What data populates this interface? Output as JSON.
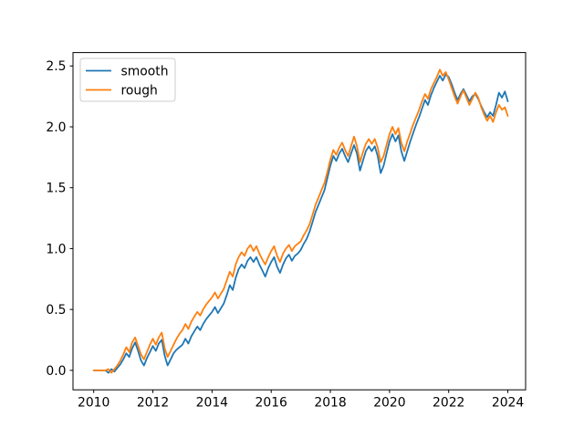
{
  "window": {
    "background": "#ffffff"
  },
  "chart_data": {
    "type": "line",
    "title": "",
    "xlabel": "",
    "ylabel": "",
    "grid": false,
    "xlim": [
      2009.3,
      2024.6
    ],
    "ylim": [
      -0.16,
      2.61
    ],
    "x_tick_values": [
      2010,
      2012,
      2014,
      2016,
      2018,
      2020,
      2022,
      2024
    ],
    "x_tick_labels": [
      "2010",
      "2012",
      "2014",
      "2016",
      "2018",
      "2020",
      "2022",
      "2024"
    ],
    "y_tick_values": [
      0.0,
      0.5,
      1.0,
      1.5,
      2.0,
      2.5
    ],
    "y_tick_labels": [
      "0.0",
      "0.5",
      "1.0",
      "1.5",
      "2.0",
      "2.5"
    ],
    "x_start": 2010.0,
    "x_step": 0.1,
    "axis_color": "#000000",
    "plot_background": "#ffffff",
    "legend": {
      "position": "upper-left",
      "frame": true,
      "border_color": "#cccccc",
      "background": "#ffffff",
      "entries": [
        "smooth",
        "rough"
      ]
    },
    "series": [
      {
        "name": "smooth",
        "color": "#1f77b4",
        "values": [
          0.0,
          0.0,
          0.0,
          0.0,
          0.0,
          -0.02,
          0.01,
          -0.01,
          0.02,
          0.05,
          0.09,
          0.14,
          0.11,
          0.18,
          0.23,
          0.16,
          0.08,
          0.04,
          0.1,
          0.15,
          0.2,
          0.16,
          0.22,
          0.25,
          0.12,
          0.04,
          0.09,
          0.14,
          0.17,
          0.19,
          0.21,
          0.26,
          0.22,
          0.28,
          0.32,
          0.36,
          0.33,
          0.38,
          0.42,
          0.45,
          0.48,
          0.52,
          0.47,
          0.51,
          0.55,
          0.62,
          0.7,
          0.66,
          0.76,
          0.83,
          0.87,
          0.84,
          0.9,
          0.93,
          0.89,
          0.93,
          0.87,
          0.82,
          0.77,
          0.84,
          0.89,
          0.93,
          0.85,
          0.8,
          0.87,
          0.92,
          0.95,
          0.9,
          0.94,
          0.96,
          0.99,
          1.04,
          1.08,
          1.14,
          1.22,
          1.3,
          1.36,
          1.42,
          1.48,
          1.58,
          1.68,
          1.76,
          1.72,
          1.78,
          1.82,
          1.76,
          1.71,
          1.78,
          1.85,
          1.78,
          1.64,
          1.72,
          1.8,
          1.84,
          1.8,
          1.84,
          1.76,
          1.62,
          1.68,
          1.78,
          1.88,
          1.94,
          1.88,
          1.93,
          1.8,
          1.72,
          1.8,
          1.88,
          1.95,
          2.02,
          2.08,
          2.15,
          2.22,
          2.18,
          2.26,
          2.32,
          2.37,
          2.42,
          2.38,
          2.43,
          2.41,
          2.35,
          2.28,
          2.22,
          2.27,
          2.31,
          2.26,
          2.21,
          2.25,
          2.27,
          2.23,
          2.17,
          2.12,
          2.08,
          2.12,
          2.09,
          2.18,
          2.28,
          2.24,
          2.29,
          2.21
        ]
      },
      {
        "name": "rough",
        "color": "#ff7f0e",
        "values": [
          0.0,
          0.0,
          0.0,
          0.0,
          0.0,
          0.01,
          -0.02,
          0.01,
          0.04,
          0.08,
          0.13,
          0.19,
          0.15,
          0.23,
          0.27,
          0.2,
          0.13,
          0.09,
          0.15,
          0.21,
          0.26,
          0.21,
          0.27,
          0.31,
          0.18,
          0.11,
          0.16,
          0.21,
          0.26,
          0.3,
          0.33,
          0.38,
          0.34,
          0.4,
          0.44,
          0.48,
          0.45,
          0.5,
          0.54,
          0.57,
          0.6,
          0.64,
          0.59,
          0.63,
          0.67,
          0.74,
          0.81,
          0.77,
          0.87,
          0.93,
          0.97,
          0.94,
          1.0,
          1.03,
          0.98,
          1.02,
          0.96,
          0.91,
          0.87,
          0.93,
          0.98,
          1.02,
          0.94,
          0.89,
          0.96,
          1.0,
          1.03,
          0.98,
          1.02,
          1.04,
          1.06,
          1.11,
          1.15,
          1.2,
          1.28,
          1.36,
          1.42,
          1.48,
          1.54,
          1.63,
          1.73,
          1.81,
          1.77,
          1.83,
          1.87,
          1.81,
          1.76,
          1.84,
          1.92,
          1.84,
          1.71,
          1.79,
          1.86,
          1.9,
          1.86,
          1.9,
          1.83,
          1.71,
          1.76,
          1.85,
          1.94,
          2.0,
          1.94,
          1.99,
          1.87,
          1.8,
          1.88,
          1.95,
          2.02,
          2.08,
          2.14,
          2.21,
          2.27,
          2.23,
          2.31,
          2.36,
          2.41,
          2.47,
          2.42,
          2.45,
          2.39,
          2.32,
          2.25,
          2.19,
          2.25,
          2.3,
          2.24,
          2.18,
          2.23,
          2.28,
          2.24,
          2.16,
          2.1,
          2.05,
          2.09,
          2.04,
          2.12,
          2.18,
          2.14,
          2.16,
          2.09
        ]
      }
    ]
  }
}
